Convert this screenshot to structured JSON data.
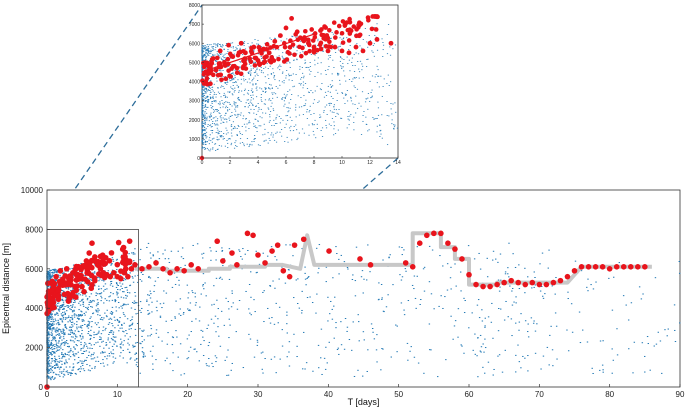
{
  "chart_data": [
    {
      "id": "main",
      "type": "scatter",
      "title": "",
      "xlabel": "T [days]",
      "ylabel": "Epicentral distance [m]",
      "xlim": [
        0,
        90
      ],
      "ylim": [
        0,
        10000
      ],
      "xticks": [
        0,
        10,
        20,
        30,
        40,
        50,
        60,
        70,
        80,
        90
      ],
      "yticks": [
        0,
        2000,
        4000,
        6000,
        8000,
        10000
      ],
      "grid": false,
      "legend": "none",
      "series": [
        {
          "role": "events",
          "color": "#1f77b4",
          "marker": "small-dot"
        },
        {
          "role": "front",
          "color": "#e8141c",
          "marker": "filled-circle",
          "points": [
            [
              0.2,
              3900
            ],
            [
              0.4,
              4400
            ],
            [
              0.6,
              4800
            ],
            [
              0.8,
              5200
            ],
            [
              1.0,
              4600
            ],
            [
              1.3,
              5600
            ],
            [
              1.6,
              5000
            ],
            [
              1.9,
              5900
            ],
            [
              2.2,
              5300
            ],
            [
              2.5,
              4700
            ],
            [
              2.8,
              6000
            ],
            [
              3.1,
              5500
            ],
            [
              3.4,
              5200
            ],
            [
              3.7,
              5800
            ],
            [
              4.0,
              5100
            ],
            [
              4.4,
              5700
            ],
            [
              4.8,
              5500
            ],
            [
              5.2,
              6100
            ],
            [
              5.6,
              6400
            ],
            [
              6.0,
              6800
            ],
            [
              6.4,
              7300
            ],
            [
              6.8,
              6600
            ],
            [
              7.2,
              6200
            ],
            [
              7.6,
              6000
            ],
            [
              8.0,
              5800
            ],
            [
              8.5,
              5700
            ],
            [
              9.0,
              5600
            ],
            [
              9.5,
              5800
            ],
            [
              10.0,
              5600
            ],
            [
              10.5,
              5500
            ],
            [
              11.0,
              5800
            ],
            [
              11.5,
              5600
            ],
            [
              12.0,
              6000
            ],
            [
              12.5,
              6200
            ],
            [
              13.5,
              6000
            ],
            [
              14.5,
              6100
            ],
            [
              15.5,
              6300
            ],
            [
              16.5,
              6000
            ],
            [
              17.5,
              5800
            ],
            [
              18.5,
              6000
            ],
            [
              19.5,
              5900
            ],
            [
              20.5,
              6200
            ],
            [
              21.5,
              6000
            ],
            [
              24.2,
              7400
            ],
            [
              25.0,
              6400
            ],
            [
              26.3,
              6800
            ],
            [
              27.0,
              6200
            ],
            [
              28.5,
              7800
            ],
            [
              29.3,
              7700
            ],
            [
              30.0,
              6700
            ],
            [
              31.0,
              6300
            ],
            [
              32.0,
              6900
            ],
            [
              32.8,
              7200
            ],
            [
              33.6,
              5900
            ],
            [
              34.5,
              5600
            ],
            [
              35.2,
              7200
            ],
            [
              36.5,
              7500
            ],
            [
              40.1,
              6900
            ],
            [
              44.5,
              6500
            ],
            [
              46.0,
              6200
            ],
            [
              51.0,
              6300
            ],
            [
              52.0,
              6100
            ],
            [
              53.0,
              7300
            ],
            [
              54.0,
              7700
            ],
            [
              55.0,
              7800
            ],
            [
              56.0,
              7800
            ],
            [
              57.0,
              7300
            ],
            [
              58.0,
              7000
            ],
            [
              59.0,
              6500
            ],
            [
              60.0,
              5700
            ],
            [
              61.0,
              5200
            ],
            [
              62.0,
              5100
            ],
            [
              63.0,
              5100
            ],
            [
              64.0,
              5200
            ],
            [
              65.0,
              5300
            ],
            [
              66.0,
              5400
            ],
            [
              67.0,
              5300
            ],
            [
              68.0,
              5200
            ],
            [
              69.0,
              5300
            ],
            [
              70.0,
              5200
            ],
            [
              71.0,
              5200
            ],
            [
              72.0,
              5300
            ],
            [
              73.0,
              5400
            ],
            [
              74.0,
              5600
            ],
            [
              75.0,
              5900
            ],
            [
              76.0,
              6100
            ],
            [
              77.0,
              6100
            ],
            [
              78.0,
              6100
            ],
            [
              79.0,
              6100
            ],
            [
              80.0,
              6000
            ],
            [
              81.0,
              6100
            ],
            [
              82.0,
              6100
            ],
            [
              83.0,
              6100
            ],
            [
              84.0,
              6100
            ],
            [
              85.0,
              6100
            ]
          ]
        },
        {
          "role": "median",
          "color": "#c8c8c8",
          "marker": "thick-step-line",
          "points": [
            [
              12.5,
              6000
            ],
            [
              17,
              6000
            ],
            [
              17,
              5900
            ],
            [
              23,
              5900
            ],
            [
              23,
              6000
            ],
            [
              26,
              6000
            ],
            [
              26,
              6100
            ],
            [
              31,
              6100
            ],
            [
              31,
              6200
            ],
            [
              33.5,
              6200
            ],
            [
              36,
              6000
            ],
            [
              37,
              7700
            ],
            [
              38,
              6200
            ],
            [
              52,
              6200
            ],
            [
              52,
              7800
            ],
            [
              56,
              7800
            ],
            [
              56,
              7100
            ],
            [
              58,
              7100
            ],
            [
              58,
              6500
            ],
            [
              60,
              6500
            ],
            [
              60,
              5200
            ],
            [
              64,
              5200
            ],
            [
              64,
              5300
            ],
            [
              74,
              5300
            ],
            [
              76,
              6100
            ],
            [
              86,
              6100
            ]
          ]
        }
      ],
      "inset_box": {
        "xlim": [
          0,
          13
        ],
        "ylim": [
          0,
          8000
        ]
      }
    },
    {
      "id": "inset",
      "type": "scatter",
      "title": "",
      "xlabel": "",
      "ylabel": "",
      "xlim": [
        0,
        14
      ],
      "ylim": [
        0,
        8000
      ],
      "xticks": [
        0,
        2,
        4,
        6,
        8,
        10,
        12,
        14
      ],
      "yticks": [
        0,
        1000,
        2000,
        3000,
        4000,
        5000,
        6000,
        7000,
        8000
      ],
      "grid": false,
      "fit_line": {
        "color": "#e8141c",
        "from": [
          0,
          4500
        ],
        "to": [
          8.1,
          6500
        ]
      },
      "series": [
        {
          "role": "events",
          "color": "#1f77b4",
          "marker": "small-dot"
        },
        {
          "role": "front",
          "color": "#e8141c",
          "marker": "filled-circle"
        }
      ]
    }
  ]
}
